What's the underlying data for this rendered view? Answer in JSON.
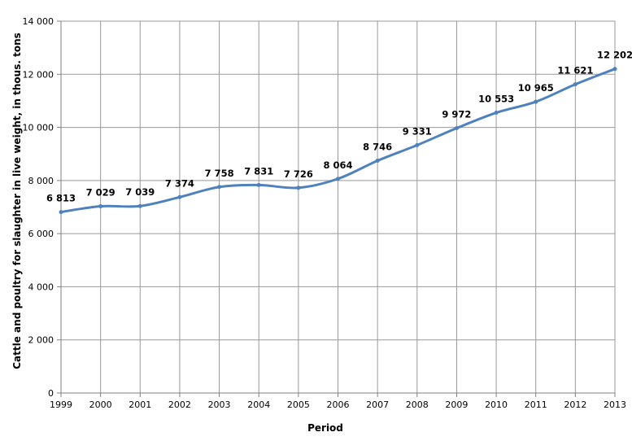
{
  "chart_data": {
    "type": "line",
    "title": "",
    "xlabel": "Period",
    "ylabel": "Cattle and poultry for slaughter in live weight, in thous. tons",
    "ylim": [
      0,
      14000
    ],
    "y_ticks": [
      "0",
      "2 000",
      "4 000",
      "6 000",
      "8 000",
      "10 000",
      "12 000",
      "14 000"
    ],
    "y_tick_values": [
      0,
      2000,
      4000,
      6000,
      8000,
      10000,
      12000,
      14000
    ],
    "categories": [
      "1999",
      "2000",
      "2001",
      "2002",
      "2003",
      "2004",
      "2005",
      "2006",
      "2007",
      "2008",
      "2009",
      "2010",
      "2011",
      "2012",
      "2013"
    ],
    "values": [
      6813,
      7029,
      7039,
      7374,
      7758,
      7831,
      7726,
      8064,
      8746,
      9331,
      9972,
      10553,
      10965,
      11621,
      12202
    ],
    "data_labels": [
      "6 813",
      "7 029",
      "7 039",
      "7 374",
      "7 758",
      "7 831",
      "7 726",
      "8 064",
      "8 746",
      "9 331",
      "9 972",
      "10 553",
      "10 965",
      "11 621",
      "12 202"
    ],
    "grid": true,
    "legend": "none",
    "line_color": "#4f81bd",
    "grid_color": "#999999"
  }
}
